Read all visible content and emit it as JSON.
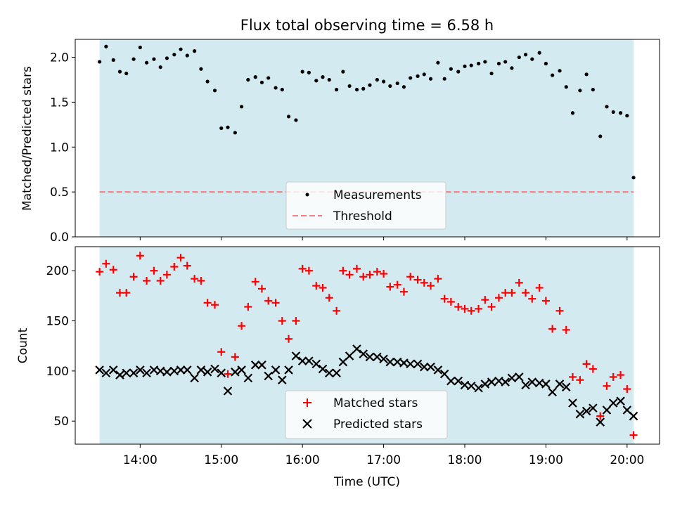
{
  "chart_data": [
    {
      "type": "scatter",
      "title": "Flux total observing time = 6.58 h",
      "xlabel": "",
      "ylabel": "Matched/Predicted stars",
      "xlim": [
        13.2,
        20.4
      ],
      "ylim": [
        0.0,
        2.2
      ],
      "yticks": [
        0.0,
        0.5,
        1.0,
        1.5,
        2.0
      ],
      "ytick_labels": [
        "0.0",
        "0.5",
        "1.0",
        "1.5",
        "2.0"
      ],
      "shaded_span": [
        13.5,
        20.08
      ],
      "shade_color": "#d4eaf1",
      "threshold": 0.5,
      "legend_location": "lower center",
      "legend": {
        "measurements": "Measurements",
        "threshold": "Threshold"
      },
      "series": [
        {
          "name": "Measurements",
          "x": [
            13.5,
            13.58,
            13.67,
            13.75,
            13.83,
            13.92,
            14.0,
            14.08,
            14.17,
            14.25,
            14.33,
            14.42,
            14.5,
            14.58,
            14.67,
            14.75,
            14.83,
            14.92,
            15.0,
            15.08,
            15.17,
            15.25,
            15.33,
            15.42,
            15.5,
            15.58,
            15.67,
            15.75,
            15.83,
            15.92,
            16.0,
            16.08,
            16.17,
            16.25,
            16.33,
            16.42,
            16.5,
            16.58,
            16.67,
            16.75,
            16.83,
            16.92,
            17.0,
            17.08,
            17.17,
            17.25,
            17.33,
            17.42,
            17.5,
            17.58,
            17.67,
            17.75,
            17.83,
            17.92,
            18.0,
            18.08,
            18.17,
            18.25,
            18.33,
            18.42,
            18.5,
            18.58,
            18.67,
            18.75,
            18.83,
            18.92,
            19.0,
            19.08,
            19.17,
            19.25,
            19.33,
            19.42,
            19.5,
            19.58,
            19.67,
            19.75,
            19.83,
            19.92,
            20.0,
            20.08
          ],
          "y": [
            1.95,
            2.12,
            1.97,
            1.84,
            1.82,
            1.98,
            2.11,
            1.94,
            1.98,
            1.89,
            1.99,
            2.03,
            2.09,
            2.02,
            2.07,
            1.87,
            1.73,
            1.63,
            1.21,
            1.22,
            1.16,
            1.45,
            1.75,
            1.78,
            1.72,
            1.77,
            1.66,
            1.64,
            1.34,
            1.3,
            1.84,
            1.83,
            1.74,
            1.78,
            1.75,
            1.64,
            1.84,
            1.68,
            1.64,
            1.65,
            1.69,
            1.75,
            1.73,
            1.68,
            1.71,
            1.67,
            1.77,
            1.79,
            1.81,
            1.76,
            1.94,
            1.76,
            1.87,
            1.84,
            1.9,
            1.91,
            1.93,
            1.95,
            1.82,
            1.93,
            1.95,
            1.88,
            2.0,
            2.03,
            1.98,
            2.05,
            1.93,
            1.8,
            1.85,
            1.67,
            1.38,
            1.63,
            1.81,
            1.64,
            1.12,
            1.45,
            1.39,
            1.38,
            1.35,
            0.66
          ],
          "color": "#000000",
          "marker": "dot"
        },
        {
          "name": "Threshold",
          "y_constant": 0.5,
          "color": "#ef7f7f",
          "style": "dashed"
        }
      ]
    },
    {
      "type": "scatter",
      "title": "",
      "xlabel": "Time (UTC)",
      "ylabel": "Count",
      "xlim": [
        13.2,
        20.4
      ],
      "ylim": [
        27,
        224
      ],
      "xticks": [
        14,
        15,
        16,
        17,
        18,
        19,
        20
      ],
      "xtick_labels": [
        "14:00",
        "15:00",
        "16:00",
        "17:00",
        "18:00",
        "19:00",
        "20:00"
      ],
      "yticks": [
        50,
        100,
        150,
        200
      ],
      "ytick_labels": [
        "50",
        "100",
        "150",
        "200"
      ],
      "shaded_span": [
        13.5,
        20.08
      ],
      "shade_color": "#d4eaf1",
      "legend_location": "lower center",
      "legend": {
        "matched": "Matched stars",
        "predicted": "Predicted stars"
      },
      "series": [
        {
          "name": "Matched stars",
          "x": [
            13.5,
            13.58,
            13.67,
            13.75,
            13.83,
            13.92,
            14.0,
            14.08,
            14.17,
            14.25,
            14.33,
            14.42,
            14.5,
            14.58,
            14.67,
            14.75,
            14.83,
            14.92,
            15.0,
            15.08,
            15.17,
            15.25,
            15.33,
            15.42,
            15.5,
            15.58,
            15.67,
            15.75,
            15.83,
            15.92,
            16.0,
            16.08,
            16.17,
            16.25,
            16.33,
            16.42,
            16.5,
            16.58,
            16.67,
            16.75,
            16.83,
            16.92,
            17.0,
            17.08,
            17.17,
            17.25,
            17.33,
            17.42,
            17.5,
            17.58,
            17.67,
            17.75,
            17.83,
            17.92,
            18.0,
            18.08,
            18.17,
            18.25,
            18.33,
            18.42,
            18.5,
            18.58,
            18.67,
            18.75,
            18.83,
            18.92,
            19.0,
            19.08,
            19.17,
            19.25,
            19.33,
            19.42,
            19.5,
            19.58,
            19.67,
            19.75,
            19.83,
            19.92,
            20.0,
            20.08
          ],
          "y": [
            199,
            207,
            201,
            178,
            178,
            194,
            215,
            190,
            200,
            190,
            196,
            204,
            213,
            205,
            192,
            190,
            168,
            166,
            119,
            97,
            114,
            145,
            164,
            189,
            182,
            170,
            168,
            150,
            132,
            150,
            202,
            200,
            185,
            183,
            173,
            160,
            200,
            196,
            202,
            194,
            196,
            199,
            197,
            184,
            186,
            179,
            194,
            191,
            188,
            185,
            192,
            172,
            169,
            164,
            162,
            160,
            162,
            171,
            164,
            173,
            178,
            178,
            188,
            178,
            172,
            183,
            170,
            142,
            160,
            141,
            94,
            91,
            107,
            102,
            55,
            85,
            94,
            96,
            82,
            36
          ],
          "color": "#ff0000",
          "marker": "plus"
        },
        {
          "name": "Predicted stars",
          "x": [
            13.5,
            13.58,
            13.67,
            13.75,
            13.83,
            13.92,
            14.0,
            14.08,
            14.17,
            14.25,
            14.33,
            14.42,
            14.5,
            14.58,
            14.67,
            14.75,
            14.83,
            14.92,
            15.0,
            15.08,
            15.17,
            15.25,
            15.33,
            15.42,
            15.5,
            15.58,
            15.67,
            15.75,
            15.83,
            15.92,
            16.0,
            16.08,
            16.17,
            16.25,
            16.33,
            16.42,
            16.5,
            16.58,
            16.67,
            16.75,
            16.83,
            16.92,
            17.0,
            17.08,
            17.17,
            17.25,
            17.33,
            17.42,
            17.5,
            17.58,
            17.67,
            17.75,
            17.83,
            17.92,
            18.0,
            18.08,
            18.17,
            18.25,
            18.33,
            18.42,
            18.5,
            18.58,
            18.67,
            18.75,
            18.83,
            18.92,
            19.0,
            19.08,
            19.17,
            19.25,
            19.33,
            19.42,
            19.5,
            19.58,
            19.67,
            19.75,
            19.83,
            19.92,
            20.0,
            20.08
          ],
          "y": [
            101,
            98,
            101,
            96,
            98,
            98,
            101,
            98,
            101,
            100,
            99,
            100,
            101,
            101,
            93,
            101,
            99,
            102,
            98,
            80,
            99,
            101,
            93,
            106,
            106,
            95,
            101,
            91,
            101,
            115,
            110,
            110,
            107,
            102,
            98,
            98,
            109,
            115,
            122,
            117,
            114,
            114,
            112,
            109,
            109,
            108,
            107,
            107,
            104,
            104,
            101,
            97,
            90,
            90,
            86,
            85,
            83,
            87,
            89,
            90,
            89,
            93,
            94,
            86,
            89,
            88,
            87,
            79,
            87,
            84,
            68,
            57,
            60,
            63,
            49,
            61,
            68,
            70,
            61,
            55
          ],
          "color": "#000000",
          "marker": "x"
        }
      ]
    }
  ]
}
